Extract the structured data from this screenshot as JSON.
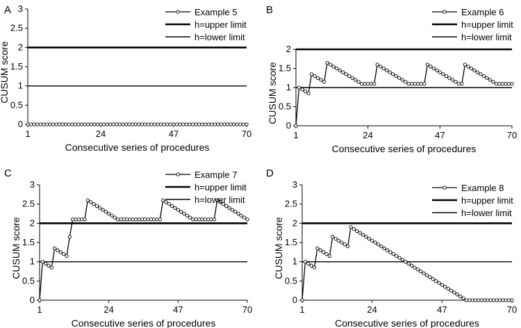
{
  "figure": {
    "xlabel": "Consecutive series of procedures",
    "ylabel": "CUSUM score",
    "legend_upper": "h=upper limit",
    "legend_lower": "h=lower limit"
  },
  "colors": {
    "line": "#000000",
    "marker_fill": "#ffffff"
  },
  "chart_data": [
    {
      "type": "line",
      "panel": "A",
      "series_name": "Example 5",
      "xlim": [
        1,
        70
      ],
      "xticks": [
        1,
        24,
        47,
        70
      ],
      "ylim": [
        0,
        3
      ],
      "yticks": [
        "0",
        "0.5",
        "1",
        "1.5",
        "2",
        "2.5",
        "3"
      ],
      "upper_limit": 2,
      "lower_limit": 1,
      "events": [],
      "values": []
    },
    {
      "type": "line",
      "panel": "B",
      "series_name": "Example 6",
      "xlim": [
        1,
        70
      ],
      "xticks": [
        1,
        24,
        47,
        70
      ],
      "ylim": [
        0,
        2
      ],
      "yticks": [
        "0",
        "0.5",
        "1",
        "1.5",
        "2"
      ],
      "upper_limit": 2,
      "lower_limit": 1,
      "events": [
        2,
        6,
        11,
        27,
        43,
        55
      ],
      "values": []
    },
    {
      "type": "line",
      "panel": "C",
      "series_name": "Example 7",
      "xlim": [
        1,
        70
      ],
      "xticks": [
        1,
        24,
        47,
        70
      ],
      "ylim": [
        0,
        3
      ],
      "yticks": [
        "0",
        "0.5",
        "1",
        "1.5",
        "2",
        "2.5",
        "3"
      ],
      "upper_limit": 2,
      "lower_limit": 1,
      "events": [
        2,
        6,
        11,
        17,
        42,
        60
      ],
      "values": []
    },
    {
      "type": "line",
      "panel": "D",
      "series_name": "Example 8",
      "xlim": [
        1,
        70
      ],
      "xticks": [
        1,
        24,
        47,
        70
      ],
      "ylim": [
        0,
        3
      ],
      "yticks": [
        "0",
        "0.5",
        "1",
        "1.5",
        "2",
        "2.5",
        "3"
      ],
      "upper_limit": 2,
      "lower_limit": 1,
      "events": [
        2,
        6,
        11,
        17
      ],
      "values": []
    }
  ]
}
